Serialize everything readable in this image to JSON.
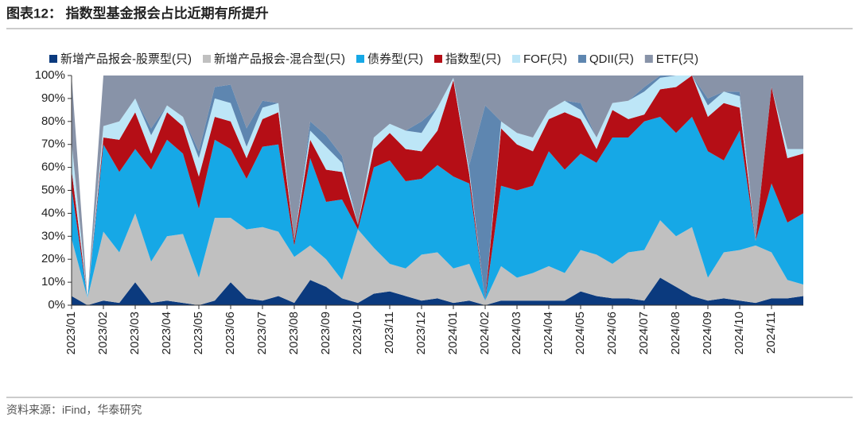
{
  "chart_data": {
    "type": "stacked_area",
    "title": "图表12： 指数型基金报会占比近期有所提升",
    "source": "资料来源：iFind，华泰研究",
    "categories": [
      "2023/01",
      null,
      "2023/02",
      null,
      "2023/03",
      null,
      "2023/04",
      null,
      "2023/05",
      null,
      "2023/06",
      null,
      "2023/07",
      null,
      "2023/08",
      null,
      "2023/09",
      null,
      "2023/10",
      null,
      "2023/11",
      null,
      "2023/12",
      null,
      "2024/01",
      null,
      "2024/02",
      null,
      "2024/03",
      null,
      "2024/04",
      null,
      "2024/05",
      null,
      "2024/06",
      null,
      "2024/07",
      null,
      "2024/08",
      null,
      "2024/09",
      null,
      "2024/10",
      null,
      "2024/11",
      null,
      null
    ],
    "series": [
      {
        "name": "新增产品报会-股票型(只)",
        "color": "#0b3a7e",
        "values": [
          4,
          0,
          2,
          1,
          10,
          1,
          2,
          1,
          0,
          2,
          10,
          3,
          2,
          4,
          1,
          11,
          8,
          3,
          1,
          5,
          6,
          4,
          2,
          3,
          1,
          2,
          0,
          2,
          2,
          2,
          2,
          2,
          6,
          4,
          3,
          3,
          2,
          12,
          8,
          4,
          2,
          3,
          2,
          1,
          3,
          3,
          4
        ]
      },
      {
        "name": "新增产品报会-混合型(只)",
        "color": "#c0c0c0",
        "values": [
          25,
          3,
          30,
          22,
          30,
          18,
          28,
          30,
          12,
          36,
          28,
          30,
          32,
          28,
          20,
          15,
          12,
          8,
          32,
          20,
          12,
          12,
          20,
          20,
          15,
          16,
          2,
          15,
          10,
          12,
          15,
          12,
          18,
          18,
          15,
          20,
          22,
          25,
          22,
          30,
          10,
          20,
          22,
          25,
          20,
          8,
          5
        ]
      },
      {
        "name": "债券型(只)",
        "color": "#16a8e6",
        "values": [
          22,
          0,
          38,
          35,
          28,
          40,
          42,
          35,
          30,
          34,
          30,
          22,
          35,
          38,
          5,
          38,
          25,
          35,
          0,
          35,
          45,
          38,
          33,
          38,
          40,
          35,
          0,
          35,
          38,
          38,
          50,
          45,
          42,
          40,
          55,
          50,
          56,
          45,
          45,
          48,
          55,
          40,
          52,
          2,
          30,
          25,
          31
        ]
      },
      {
        "name": "指数型(只)",
        "color": "#b50e16",
        "values": [
          8,
          0,
          3,
          14,
          16,
          7,
          12,
          12,
          14,
          10,
          12,
          9,
          12,
          14,
          2,
          8,
          14,
          12,
          2,
          8,
          12,
          14,
          12,
          15,
          42,
          4,
          0,
          25,
          20,
          15,
          14,
          25,
          15,
          6,
          12,
          8,
          3,
          12,
          20,
          18,
          15,
          25,
          10,
          0,
          42,
          28,
          26
        ]
      },
      {
        "name": "FOF(只)",
        "color": "#bde6f7",
        "values": [
          12,
          0,
          5,
          8,
          6,
          8,
          3,
          4,
          8,
          8,
          8,
          5,
          5,
          4,
          0,
          4,
          10,
          4,
          0,
          5,
          4,
          8,
          8,
          10,
          1,
          2,
          0,
          3,
          5,
          6,
          4,
          5,
          4,
          5,
          3,
          8,
          10,
          5,
          5,
          0,
          5,
          5,
          5,
          0,
          0,
          4,
          2
        ]
      },
      {
        "name": "QDII(只)",
        "color": "#5e86b0",
        "values": [
          0,
          0,
          0,
          0,
          0,
          3,
          0,
          0,
          3,
          5,
          8,
          8,
          3,
          0,
          0,
          4,
          5,
          3,
          0,
          0,
          0,
          0,
          5,
          0,
          0,
          2,
          85,
          0,
          0,
          0,
          0,
          0,
          3,
          0,
          0,
          0,
          2,
          1,
          0,
          0,
          3,
          0,
          2,
          0,
          0,
          0,
          0
        ]
      },
      {
        "name": "ETF(只)",
        "color": "#8893a8",
        "values": [
          29,
          0,
          22,
          20,
          10,
          23,
          13,
          18,
          33,
          5,
          4,
          23,
          11,
          12,
          72,
          20,
          26,
          35,
          65,
          27,
          21,
          24,
          20,
          14,
          1,
          39,
          13,
          20,
          25,
          27,
          15,
          11,
          12,
          27,
          12,
          11,
          5,
          0,
          0,
          0,
          10,
          7,
          7,
          72,
          5,
          32,
          32
        ]
      }
    ],
    "ylim": [
      0,
      100
    ],
    "yticks": [
      {
        "value": 0,
        "label": "0%"
      },
      {
        "value": 10,
        "label": "10%"
      },
      {
        "value": 20,
        "label": "20%"
      },
      {
        "value": 30,
        "label": "30%"
      },
      {
        "value": 40,
        "label": "40%"
      },
      {
        "value": 50,
        "label": "50%"
      },
      {
        "value": 60,
        "label": "60%"
      },
      {
        "value": 70,
        "label": "70%"
      },
      {
        "value": 80,
        "label": "80%"
      },
      {
        "value": 90,
        "label": "90%"
      },
      {
        "value": 100,
        "label": "100%"
      }
    ],
    "legend": "top"
  }
}
